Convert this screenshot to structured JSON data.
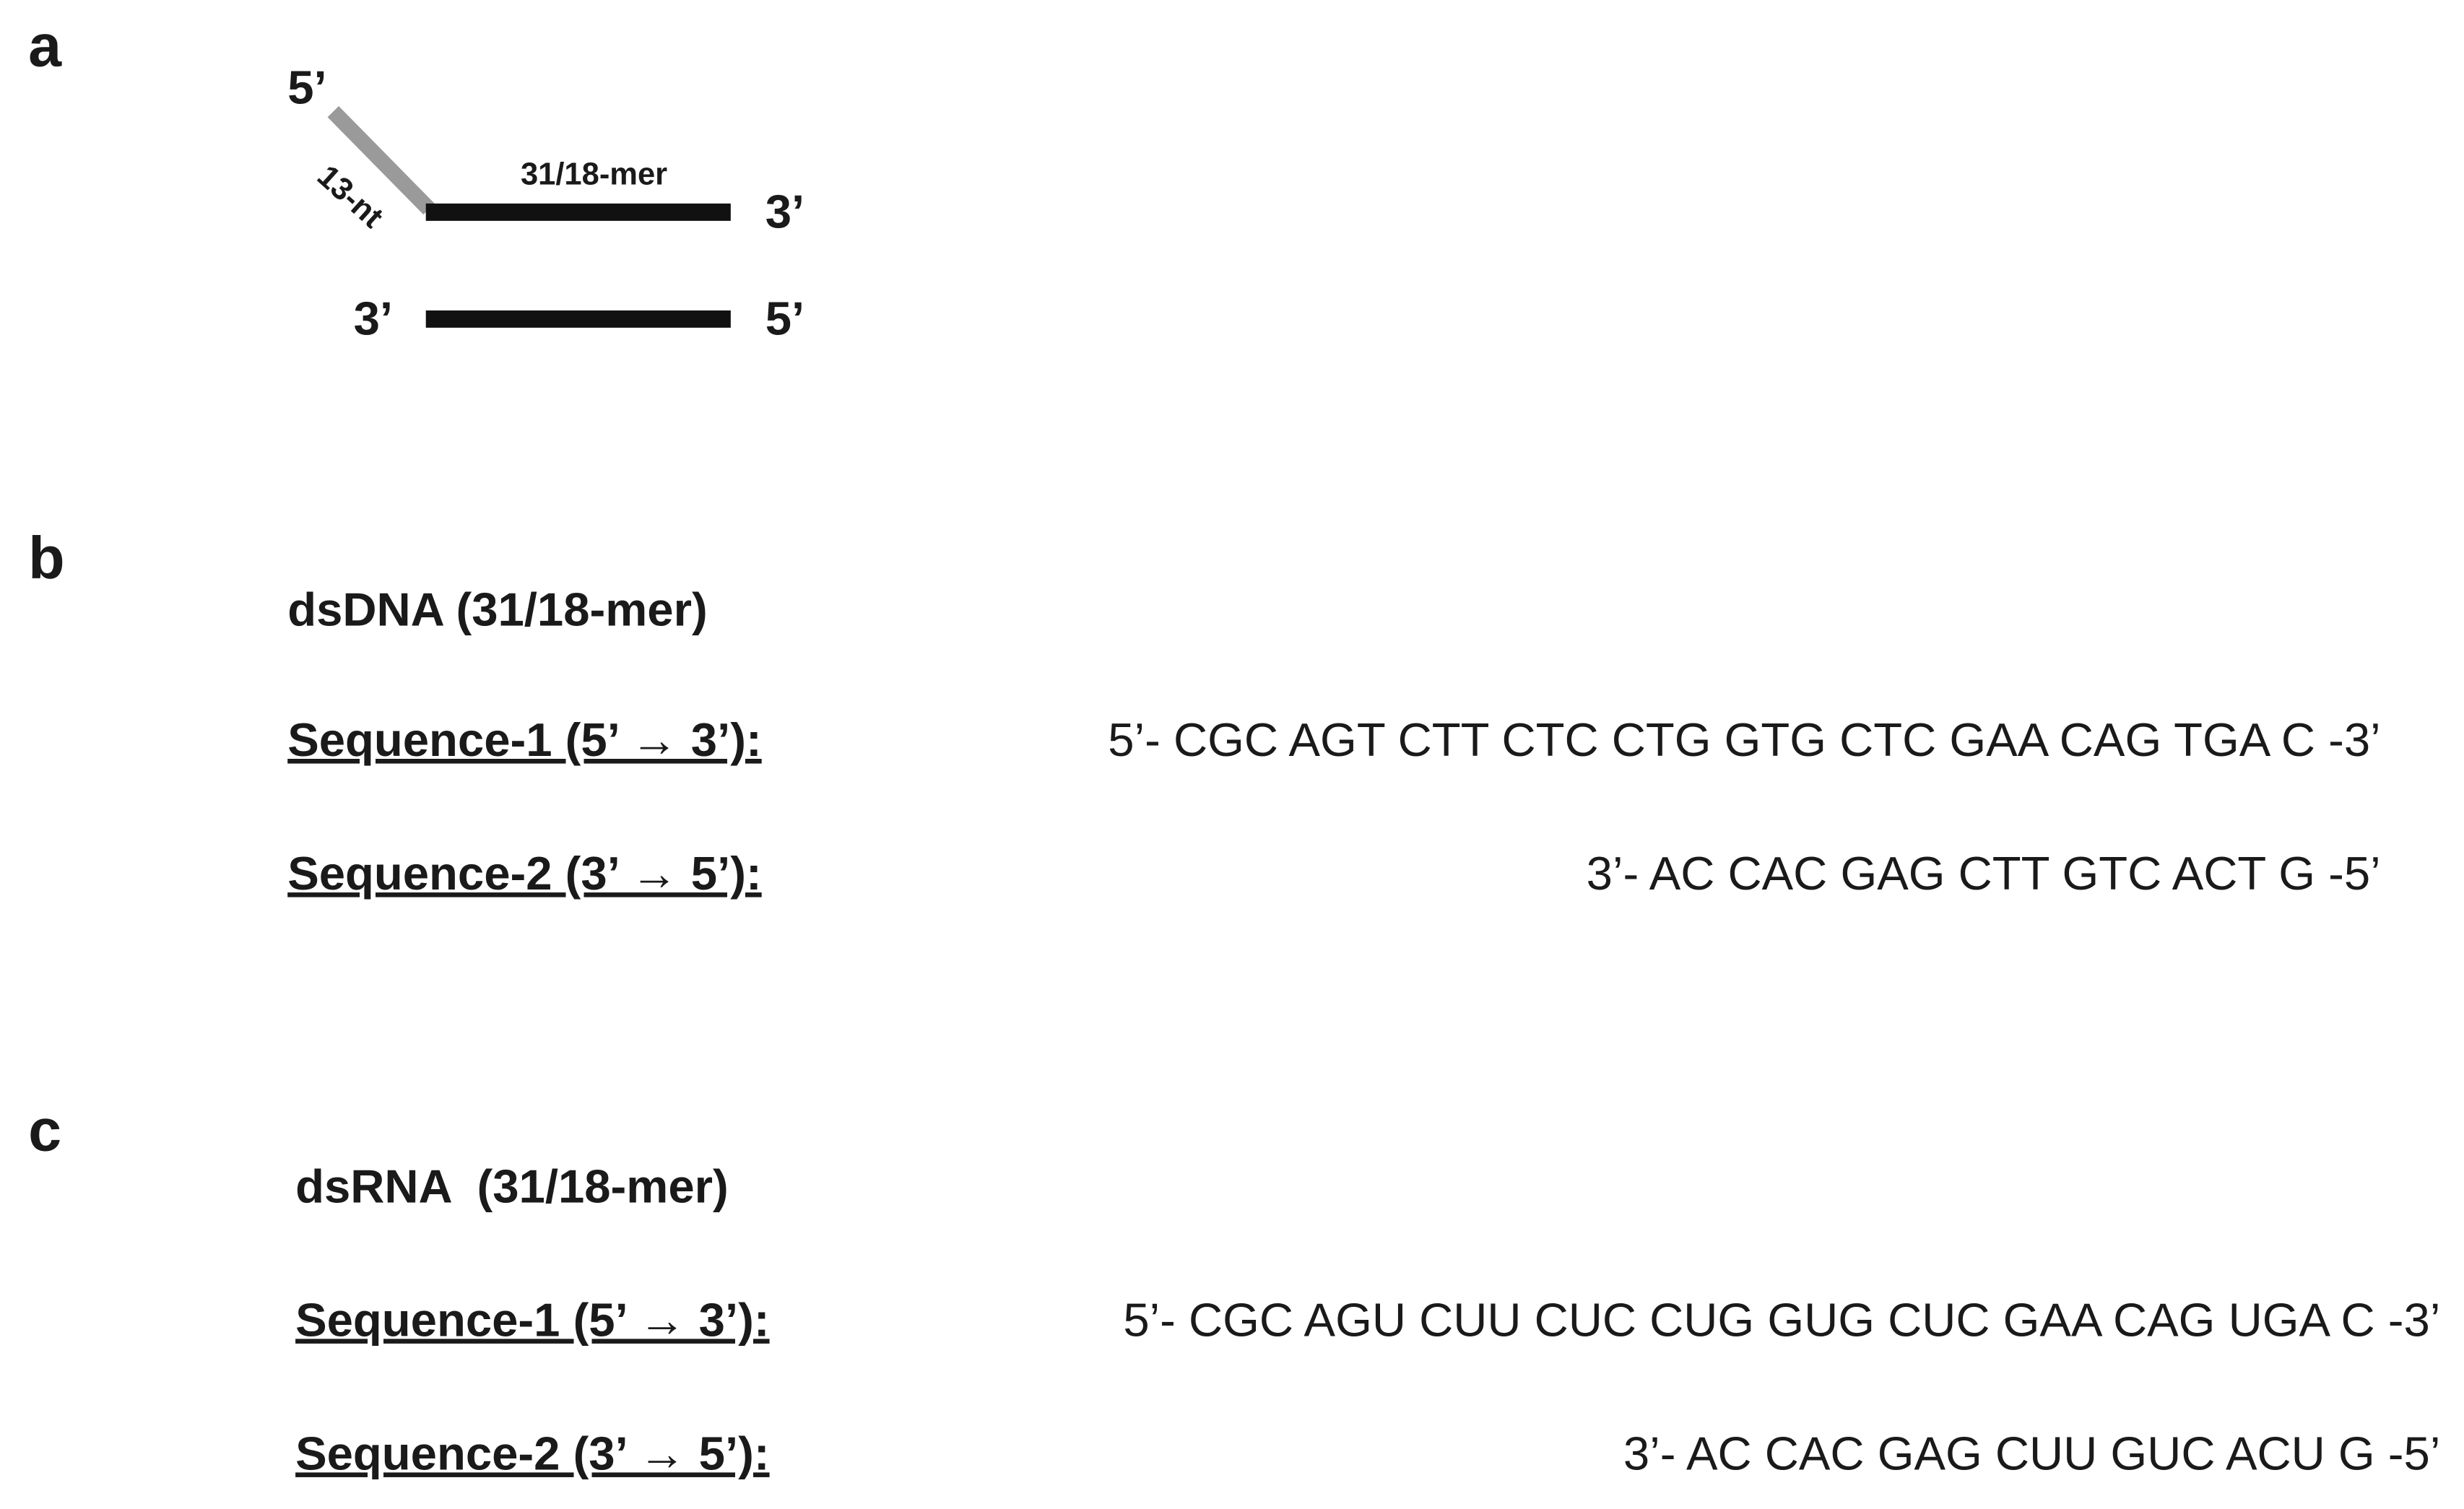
{
  "panel_a": {
    "letter": "a",
    "top_left_end": "5’",
    "overhang": "13-nt",
    "duplex": "31/18-mer",
    "top_right_end": "3’",
    "bottom_left_end": "3’",
    "bottom_right_end": "5’"
  },
  "panel_b": {
    "letter": "b",
    "heading": "dsDNA (31/18-mer)",
    "rows": [
      {
        "label": "Sequence-1 (5’ → 3’):",
        "sequence": "5’- CGC AGT CTT CTC CTG GTG CTC GAA CAG TGA C -3’"
      },
      {
        "label": "Sequence-2 (3’ → 5’):",
        "sequence": "3’- AC CAC GAG CTT GTC ACT G -5’"
      }
    ]
  },
  "panel_c": {
    "letter": "c",
    "heading": "dsRNA  (31/18-mer)",
    "rows": [
      {
        "label": "Sequence-1 (5’ → 3’):",
        "sequence": "5’- CGC AGU CUU CUC CUG GUG CUC GAA CAG UGA C -3’"
      },
      {
        "label": "Sequence-2 (3’ → 5’):",
        "sequence": "3’- AC CAC GAG CUU GUC ACU G -5’"
      }
    ]
  }
}
